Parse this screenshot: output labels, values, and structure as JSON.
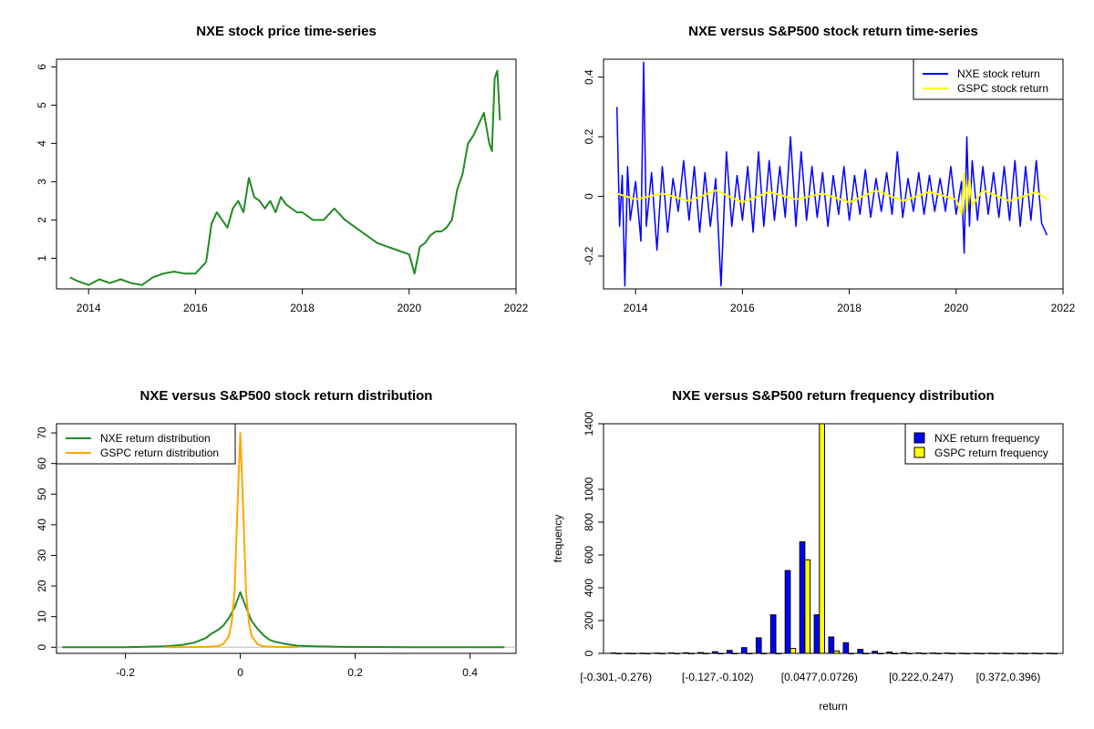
{
  "chart_data": [
    {
      "type": "line",
      "title": "NXE stock price time-series",
      "xlabel": "",
      "ylabel": "",
      "xlim": [
        2013.4,
        2022.0
      ],
      "ylim": [
        0.2,
        6.2
      ],
      "x_ticks": [
        2014,
        2016,
        2018,
        2020,
        2022
      ],
      "y_ticks": [
        1,
        2,
        3,
        4,
        5,
        6
      ],
      "grid": false,
      "series": [
        {
          "color": "#228B22",
          "x": [
            2013.65,
            2013.8,
            2014.0,
            2014.2,
            2014.4,
            2014.6,
            2014.8,
            2015.0,
            2015.2,
            2015.4,
            2015.6,
            2015.8,
            2016.0,
            2016.2,
            2016.3,
            2016.4,
            2016.5,
            2016.6,
            2016.7,
            2016.8,
            2016.9,
            2017.0,
            2017.1,
            2017.2,
            2017.3,
            2017.4,
            2017.5,
            2017.6,
            2017.7,
            2017.8,
            2017.9,
            2018.0,
            2018.2,
            2018.4,
            2018.6,
            2018.8,
            2019.0,
            2019.2,
            2019.4,
            2019.6,
            2019.8,
            2020.0,
            2020.1,
            2020.2,
            2020.3,
            2020.4,
            2020.5,
            2020.6,
            2020.7,
            2020.8,
            2020.9,
            2021.0,
            2021.1,
            2021.2,
            2021.3,
            2021.4,
            2021.5,
            2021.55,
            2021.6,
            2021.65,
            2021.7
          ],
          "values": [
            0.5,
            0.4,
            0.3,
            0.45,
            0.35,
            0.45,
            0.35,
            0.3,
            0.5,
            0.6,
            0.65,
            0.6,
            0.6,
            0.9,
            1.9,
            2.2,
            2.0,
            1.8,
            2.3,
            2.5,
            2.2,
            3.1,
            2.6,
            2.5,
            2.3,
            2.5,
            2.2,
            2.6,
            2.4,
            2.3,
            2.2,
            2.2,
            2.0,
            2.0,
            2.3,
            2.0,
            1.8,
            1.6,
            1.4,
            1.3,
            1.2,
            1.1,
            0.6,
            1.3,
            1.4,
            1.6,
            1.7,
            1.7,
            1.8,
            2.0,
            2.8,
            3.2,
            4.0,
            4.2,
            4.5,
            4.8,
            4.0,
            3.8,
            5.7,
            5.9,
            4.6
          ]
        }
      ]
    },
    {
      "type": "line",
      "title": "NXE versus S&P500 stock return time-series",
      "xlabel": "",
      "ylabel": "",
      "xlim": [
        2013.4,
        2022.0
      ],
      "ylim": [
        -0.31,
        0.46
      ],
      "x_ticks": [
        2014,
        2016,
        2018,
        2020,
        2022
      ],
      "y_ticks": [
        -0.2,
        0.0,
        0.2,
        0.4
      ],
      "legend_position": "top-right",
      "grid": false,
      "series": [
        {
          "name": "NXE stock return",
          "color": "#0000FF",
          "x": [
            2013.65,
            2013.7,
            2013.75,
            2013.8,
            2013.85,
            2013.9,
            2014.0,
            2014.1,
            2014.15,
            2014.2,
            2014.3,
            2014.4,
            2014.5,
            2014.6,
            2014.7,
            2014.8,
            2014.9,
            2015.0,
            2015.1,
            2015.2,
            2015.3,
            2015.4,
            2015.5,
            2015.6,
            2015.7,
            2015.8,
            2015.9,
            2016.0,
            2016.1,
            2016.2,
            2016.3,
            2016.4,
            2016.5,
            2016.6,
            2016.7,
            2016.8,
            2016.9,
            2017.0,
            2017.1,
            2017.2,
            2017.3,
            2017.4,
            2017.5,
            2017.6,
            2017.7,
            2017.8,
            2017.9,
            2018.0,
            2018.1,
            2018.2,
            2018.3,
            2018.4,
            2018.5,
            2018.6,
            2018.7,
            2018.8,
            2018.9,
            2019.0,
            2019.1,
            2019.2,
            2019.3,
            2019.4,
            2019.5,
            2019.6,
            2019.7,
            2019.8,
            2019.9,
            2020.0,
            2020.1,
            2020.15,
            2020.2,
            2020.25,
            2020.3,
            2020.4,
            2020.5,
            2020.6,
            2020.7,
            2020.8,
            2020.9,
            2021.0,
            2021.1,
            2021.2,
            2021.3,
            2021.4,
            2021.5,
            2021.6,
            2021.7
          ],
          "values": [
            0.3,
            -0.1,
            0.07,
            -0.3,
            0.1,
            -0.08,
            0.05,
            -0.15,
            0.45,
            -0.1,
            0.08,
            -0.18,
            0.1,
            -0.12,
            0.06,
            -0.05,
            0.12,
            -0.08,
            0.1,
            -0.12,
            0.08,
            -0.1,
            0.06,
            -0.3,
            0.15,
            -0.1,
            0.07,
            -0.08,
            0.1,
            -0.12,
            0.15,
            -0.1,
            0.12,
            -0.08,
            0.1,
            -0.07,
            0.2,
            -0.1,
            0.15,
            -0.08,
            0.1,
            -0.07,
            0.08,
            -0.1,
            0.07,
            -0.06,
            0.1,
            -0.08,
            0.07,
            -0.06,
            0.09,
            -0.07,
            0.06,
            -0.05,
            0.08,
            -0.06,
            0.15,
            -0.07,
            0.06,
            -0.05,
            0.08,
            -0.06,
            0.07,
            -0.05,
            0.06,
            -0.05,
            0.1,
            -0.06,
            0.05,
            -0.19,
            0.2,
            -0.1,
            0.12,
            -0.08,
            0.1,
            -0.06,
            0.08,
            -0.07,
            0.1,
            -0.08,
            0.12,
            -0.1,
            0.1,
            -0.08,
            0.12,
            -0.09,
            -0.13
          ]
        },
        {
          "name": "GSPC stock return",
          "color": "#FFFF00",
          "x": [
            2013.65,
            2014.0,
            2014.5,
            2015.0,
            2015.5,
            2016.0,
            2016.5,
            2017.0,
            2017.5,
            2018.0,
            2018.5,
            2019.0,
            2019.5,
            2020.0,
            2020.1,
            2020.15,
            2020.2,
            2020.25,
            2020.3,
            2020.5,
            2021.0,
            2021.5,
            2021.7
          ],
          "values": [
            0.01,
            -0.01,
            0.01,
            -0.015,
            0.02,
            -0.02,
            0.015,
            -0.01,
            0.01,
            -0.02,
            0.02,
            -0.015,
            0.015,
            -0.01,
            -0.06,
            0.08,
            -0.05,
            0.06,
            -0.03,
            0.02,
            -0.015,
            0.015,
            -0.01
          ]
        }
      ]
    },
    {
      "type": "line",
      "title": "NXE versus S&P500 stock return distribution",
      "xlabel": "",
      "ylabel": "",
      "xlim": [
        -0.32,
        0.48
      ],
      "ylim": [
        -2,
        73
      ],
      "x_ticks": [
        -0.2,
        0.0,
        0.2,
        0.4
      ],
      "y_ticks": [
        0,
        10,
        20,
        30,
        40,
        50,
        60,
        70
      ],
      "legend_position": "top-left",
      "grid": false,
      "series": [
        {
          "name": "NXE return distribution",
          "color": "#228B22",
          "x": [
            -0.31,
            -0.2,
            -0.13,
            -0.1,
            -0.08,
            -0.06,
            -0.05,
            -0.04,
            -0.03,
            -0.02,
            -0.01,
            0.0,
            0.01,
            0.02,
            0.03,
            0.04,
            0.05,
            0.06,
            0.08,
            0.1,
            0.13,
            0.18,
            0.3,
            0.46
          ],
          "values": [
            0,
            0,
            0.3,
            0.8,
            1.5,
            3.0,
            4.5,
            5.5,
            7.0,
            9.5,
            13.0,
            18.0,
            13.0,
            8.5,
            6.0,
            4.0,
            2.5,
            1.8,
            1.0,
            0.5,
            0.3,
            0.1,
            0,
            0
          ]
        },
        {
          "name": "GSPC return distribution",
          "color": "#FFA500",
          "x": [
            -0.13,
            -0.06,
            -0.04,
            -0.03,
            -0.02,
            -0.015,
            -0.01,
            -0.005,
            0.0,
            0.005,
            0.01,
            0.015,
            0.02,
            0.03,
            0.04,
            0.06,
            0.1
          ],
          "values": [
            0,
            0.1,
            0.3,
            1.0,
            3.5,
            8.0,
            18.0,
            45.0,
            70.0,
            45.0,
            18.0,
            8.0,
            3.5,
            1.0,
            0.3,
            0.1,
            0
          ]
        }
      ]
    },
    {
      "type": "bar",
      "title": "NXE versus S&P500 return frequency distribution",
      "xlabel": "return",
      "ylabel": "frequency",
      "ylim": [
        0,
        1400
      ],
      "y_ticks": [
        0,
        200,
        400,
        600,
        800,
        1000,
        1400
      ],
      "category_labels_shown": [
        "[-0.301,-0.276)",
        "[-0.127,-0.102)",
        "[0.0477,0.0726)",
        "[0.222,0.247)",
        "[0.372,0.396)"
      ],
      "label_positions": [
        0,
        7,
        14,
        21,
        27
      ],
      "legend_position": "top-right",
      "grid": false,
      "series": [
        {
          "name": "NXE return frequency",
          "color": "#0000FF",
          "values": [
            3,
            1,
            1,
            2,
            3,
            4,
            5,
            10,
            18,
            35,
            95,
            235,
            505,
            680,
            235,
            100,
            65,
            25,
            12,
            8,
            5,
            3,
            2,
            2,
            1,
            1,
            1,
            1,
            1,
            1,
            1
          ]
        },
        {
          "name": "GSPC return frequency",
          "color": "#FFFF00",
          "values": [
            0,
            0,
            0,
            0,
            0,
            0,
            0,
            0,
            0,
            0,
            0,
            0,
            30,
            570,
            1400,
            15,
            0,
            0,
            0,
            0,
            0,
            0,
            0,
            0,
            0,
            0,
            0,
            0,
            0,
            0,
            0
          ]
        }
      ]
    }
  ]
}
